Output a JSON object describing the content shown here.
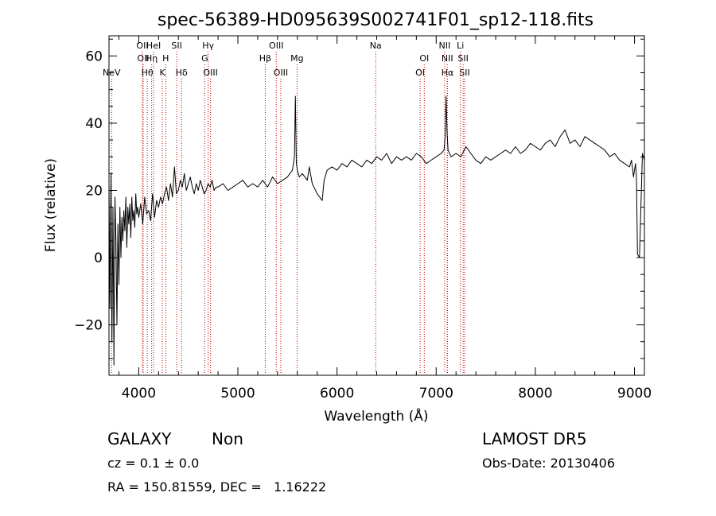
{
  "chart_data": {
    "type": "line",
    "title": "spec-56389-HD095639S002741F01_sp12-118.fits",
    "xlabel": "Wavelength (Å)",
    "ylabel": "Flux (relative)",
    "xlim": [
      3700,
      9100
    ],
    "ylim": [
      -35,
      66
    ],
    "x_ticks": [
      {
        "value": 4000,
        "label": "4000"
      },
      {
        "value": 5000,
        "label": "5000"
      },
      {
        "value": 6000,
        "label": "6000"
      },
      {
        "value": 7000,
        "label": "7000"
      },
      {
        "value": 8000,
        "label": "8000"
      },
      {
        "value": 9000,
        "label": "9000"
      }
    ],
    "y_ticks": [
      {
        "value": 60,
        "label": "60"
      },
      {
        "value": 40,
        "label": "40"
      },
      {
        "value": 20,
        "label": "20"
      },
      {
        "value": 0,
        "label": "0"
      },
      {
        "value": -20,
        "label": "−20"
      }
    ],
    "grid": false,
    "line_color": "#000000",
    "marker_color": "#c00000",
    "spectrum": {
      "x": [
        3700,
        3710,
        3720,
        3730,
        3740,
        3750,
        3760,
        3770,
        3780,
        3790,
        3800,
        3810,
        3820,
        3830,
        3840,
        3850,
        3860,
        3870,
        3880,
        3890,
        3900,
        3910,
        3920,
        3930,
        3940,
        3950,
        3960,
        3970,
        3980,
        3990,
        4000,
        4020,
        4040,
        4060,
        4080,
        4100,
        4120,
        4140,
        4160,
        4180,
        4200,
        4220,
        4240,
        4260,
        4280,
        4300,
        4320,
        4340,
        4360,
        4380,
        4400,
        4420,
        4440,
        4460,
        4480,
        4500,
        4520,
        4540,
        4560,
        4580,
        4600,
        4620,
        4640,
        4660,
        4680,
        4700,
        4720,
        4740,
        4760,
        4780,
        4800,
        4850,
        4900,
        4950,
        5000,
        5050,
        5100,
        5150,
        5200,
        5250,
        5300,
        5350,
        5400,
        5450,
        5500,
        5550,
        5570,
        5580,
        5590,
        5600,
        5620,
        5650,
        5700,
        5720,
        5750,
        5800,
        5850,
        5870,
        5900,
        5950,
        6000,
        6050,
        6100,
        6150,
        6200,
        6250,
        6300,
        6350,
        6400,
        6450,
        6500,
        6550,
        6600,
        6650,
        6700,
        6750,
        6800,
        6850,
        6900,
        6950,
        7000,
        7050,
        7080,
        7090,
        7100,
        7110,
        7120,
        7150,
        7200,
        7250,
        7300,
        7350,
        7400,
        7450,
        7500,
        7550,
        7600,
        7650,
        7700,
        7750,
        7800,
        7850,
        7900,
        7950,
        8000,
        8050,
        8100,
        8150,
        8200,
        8250,
        8300,
        8350,
        8400,
        8450,
        8500,
        8550,
        8600,
        8650,
        8700,
        8750,
        8800,
        8850,
        8900,
        8950,
        8970,
        8990,
        9000,
        9010,
        9020,
        9030,
        9050,
        9080,
        9100
      ],
      "y": [
        22,
        -15,
        25,
        -25,
        15,
        -32,
        18,
        5,
        -20,
        10,
        -8,
        15,
        0,
        12,
        5,
        14,
        8,
        18,
        3,
        15,
        10,
        16,
        6,
        18,
        11,
        14,
        9,
        19,
        13,
        15,
        12,
        16,
        10,
        18,
        13,
        14,
        11,
        19,
        12,
        17,
        15,
        18,
        16,
        19,
        21,
        17,
        22,
        18,
        27,
        19,
        20,
        23,
        21,
        25,
        20,
        22,
        24,
        21,
        19,
        22,
        20,
        23,
        21,
        19,
        20,
        22,
        21,
        23,
        20,
        21,
        21,
        22,
        20,
        21,
        22,
        23,
        21,
        22,
        21,
        23,
        21,
        24,
        22,
        23,
        24,
        26,
        30,
        48,
        28,
        26,
        24,
        25,
        23,
        27,
        22,
        19,
        17,
        23,
        26,
        27,
        26,
        28,
        27,
        29,
        28,
        27,
        29,
        28,
        30,
        29,
        31,
        28,
        30,
        29,
        30,
        29,
        31,
        30,
        28,
        29,
        30,
        31,
        32,
        36,
        48,
        37,
        32,
        30,
        31,
        30,
        33,
        31,
        29,
        28,
        30,
        29,
        30,
        31,
        32,
        31,
        33,
        31,
        32,
        34,
        33,
        32,
        34,
        35,
        33,
        36,
        38,
        34,
        35,
        33,
        36,
        35,
        34,
        33,
        32,
        30,
        31,
        29,
        28,
        27,
        29,
        24,
        26,
        28,
        24,
        1,
        0,
        31,
        29
      ],
      "stroke_width": 1
    },
    "lines": [
      {
        "name": "NeV",
        "x": 3726,
        "row": 3
      },
      {
        "name": "OII",
        "x": 4037,
        "row": 1
      },
      {
        "name": "OII",
        "x": 4045,
        "row": 2
      },
      {
        "name": "Hθ",
        "x": 4086,
        "row": 3
      },
      {
        "name": "Hη",
        "x": 4130,
        "row": 2
      },
      {
        "name": "HeI",
        "x": 4150,
        "row": 1
      },
      {
        "name": "K",
        "x": 4238,
        "row": 3
      },
      {
        "name": "H",
        "x": 4272,
        "row": 2
      },
      {
        "name": "SII",
        "x": 4383,
        "row": 1
      },
      {
        "name": "Hδ",
        "x": 4432,
        "row": 3
      },
      {
        "name": "G",
        "x": 4666,
        "row": 2
      },
      {
        "name": "Hγ",
        "x": 4700,
        "row": 1
      },
      {
        "name": "OIII",
        "x": 4724,
        "row": 3
      },
      {
        "name": "Hβ",
        "x": 5276,
        "row": 2
      },
      {
        "name": "OIII",
        "x": 5387,
        "row": 1
      },
      {
        "name": "OIII",
        "x": 5433,
        "row": 3
      },
      {
        "name": "Mg",
        "x": 5597,
        "row": 2
      },
      {
        "name": "Na",
        "x": 6390,
        "row": 1
      },
      {
        "name": "OI",
        "x": 6838,
        "row": 3
      },
      {
        "name": "OI",
        "x": 6880,
        "row": 2
      },
      {
        "name": "NII",
        "x": 7085,
        "row": 1
      },
      {
        "name": "Hα",
        "x": 7114,
        "row": 3
      },
      {
        "name": "NII",
        "x": 7112,
        "row": 2
      },
      {
        "name": "Li",
        "x": 7244,
        "row": 1
      },
      {
        "name": "SII",
        "x": 7287,
        "row": 3
      },
      {
        "name": "SII",
        "x": 7272,
        "row": 2
      }
    ]
  },
  "info": {
    "object_class": "GALAXY",
    "subclass": "Non",
    "survey": "LAMOST DR5",
    "cz": "cz = 0.1 ± 0.0",
    "obs_date": "Obs-Date: 20130406",
    "coords": "RA = 150.81559, DEC =   1.16222"
  }
}
